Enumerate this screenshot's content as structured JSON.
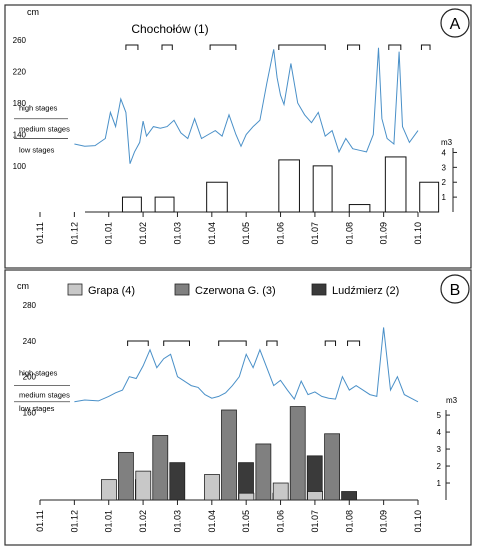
{
  "chart_data": [
    {
      "panel": "A",
      "type": "line+bar",
      "title": "Chochołów (1)",
      "y_unit": "cm",
      "y2_unit": "m3",
      "yticks": [
        100,
        140,
        180,
        220,
        260
      ],
      "ylim": [
        95,
        270
      ],
      "y2ticks": [
        1,
        2,
        3,
        4
      ],
      "y2lim": [
        0,
        4.3
      ],
      "xticks": [
        "01.11",
        "01.12",
        "01.01",
        "01.02",
        "01.03",
        "01.04",
        "01.05",
        "01.06",
        "01.07",
        "01.08",
        "01.09",
        "01.10"
      ],
      "stage_labels": [
        "high stages",
        "medium stages",
        "low stages"
      ],
      "stage_bounds_cm": [
        160,
        135
      ],
      "water_level": {
        "months": [
          2.0,
          2.3,
          2.6,
          2.9,
          3.05,
          3.2,
          3.35,
          3.5,
          3.62,
          3.75,
          3.9,
          4.0,
          4.1,
          4.3,
          4.5,
          4.7,
          4.9,
          5.1,
          5.3,
          5.5,
          5.7,
          5.9,
          6.1,
          6.3,
          6.5,
          6.7,
          6.85,
          7.0,
          7.2,
          7.4,
          7.6,
          7.8,
          7.9,
          8.0,
          8.1,
          8.3,
          8.5,
          8.7,
          8.9,
          9.1,
          9.3,
          9.5,
          9.7,
          9.9,
          10.1,
          10.3,
          10.5,
          10.7,
          10.85,
          10.95,
          11.1,
          11.3,
          11.45,
          11.55,
          11.75,
          12.0
        ],
        "cm": [
          128,
          125,
          126,
          135,
          168,
          150,
          185,
          168,
          103,
          118,
          130,
          157,
          138,
          150,
          148,
          150,
          158,
          142,
          135,
          160,
          135,
          140,
          145,
          138,
          165,
          140,
          125,
          140,
          150,
          158,
          205,
          248,
          212,
          190,
          178,
          230,
          180,
          165,
          155,
          168,
          138,
          145,
          118,
          135,
          122,
          120,
          118,
          140,
          250,
          160,
          135,
          128,
          245,
          150,
          130,
          145
        ]
      },
      "ice_bars": [
        {
          "start": 3.4,
          "end": 3.95,
          "value": 1
        },
        {
          "start": 4.35,
          "end": 4.9,
          "value": 1
        },
        {
          "start": 5.85,
          "end": 6.45,
          "value": 2
        },
        {
          "start": 7.95,
          "end": 8.55,
          "value": 3.5
        },
        {
          "start": 8.95,
          "end": 9.5,
          "value": 3.1
        },
        {
          "start": 10.0,
          "end": 10.6,
          "value": 0.5
        },
        {
          "start": 11.05,
          "end": 11.65,
          "value": 3.7
        },
        {
          "start": 12.05,
          "end": 12.6,
          "value": 2.0
        }
      ],
      "brackets": [
        [
          3.5,
          3.85
        ],
        [
          4.55,
          4.85
        ],
        [
          5.95,
          6.7
        ],
        [
          7.95,
          9.3
        ],
        [
          9.95,
          10.3
        ],
        [
          11.15,
          11.5
        ],
        [
          12.1,
          12.35
        ]
      ]
    },
    {
      "panel": "B",
      "type": "line+bar",
      "title": "",
      "y_unit": "cm",
      "y2_unit": "m3",
      "yticks": [
        160,
        200,
        240,
        280
      ],
      "ylim": [
        155,
        290
      ],
      "y2ticks": [
        1,
        2,
        3,
        4,
        5
      ],
      "y2lim": [
        0,
        5.3
      ],
      "xticks": [
        "01.11",
        "01.12",
        "01.01",
        "01.02",
        "01.03",
        "01.04",
        "01.05",
        "01.06",
        "01.07",
        "01.08",
        "01.09",
        "01.10"
      ],
      "stage_labels": [
        "high stages",
        "medium stages",
        "low stages"
      ],
      "stage_bounds_cm": [
        190,
        172
      ],
      "legend": [
        "Grapa (4)",
        "Czerwona G. (3)",
        "Ludźmierz (2)"
      ],
      "series_colors": [
        "#c8c8c8",
        "#808080",
        "#3a3a3a"
      ],
      "water_level": {
        "months": [
          2.0,
          2.3,
          2.7,
          3.0,
          3.2,
          3.4,
          3.6,
          3.8,
          4.0,
          4.2,
          4.4,
          4.6,
          4.8,
          5.0,
          5.2,
          5.4,
          5.6,
          5.8,
          6.0,
          6.2,
          6.4,
          6.6,
          6.8,
          7.0,
          7.2,
          7.4,
          7.6,
          7.8,
          8.0,
          8.2,
          8.4,
          8.6,
          8.8,
          9.0,
          9.2,
          9.4,
          9.6,
          9.8,
          10.0,
          10.2,
          10.4,
          10.6,
          10.8,
          11.0,
          11.2,
          11.4,
          11.6,
          11.8,
          12.0
        ],
        "cm": [
          172,
          174,
          173,
          178,
          182,
          185,
          200,
          198,
          212,
          230,
          210,
          220,
          225,
          200,
          195,
          190,
          188,
          180,
          176,
          178,
          182,
          190,
          200,
          225,
          210,
          230,
          210,
          190,
          196,
          185,
          175,
          195,
          180,
          183,
          178,
          176,
          175,
          200,
          185,
          190,
          185,
          180,
          178,
          255,
          185,
          200,
          180,
          176,
          172
        ]
      },
      "clusters": [
        {
          "month": 3.5,
          "values": [
            1.2,
            2.8,
            1.2
          ]
        },
        {
          "month": 4.5,
          "values": [
            1.7,
            3.8,
            2.2
          ]
        },
        {
          "month": 6.5,
          "values": [
            1.5,
            5.3,
            2.2
          ]
        },
        {
          "month": 7.5,
          "values": [
            0.4,
            3.3,
            0.4
          ]
        },
        {
          "month": 8.5,
          "values": [
            1.0,
            5.5,
            2.6
          ]
        },
        {
          "month": 9.5,
          "values": [
            0.5,
            3.9,
            0.5
          ]
        }
      ],
      "brackets": [
        [
          3.55,
          4.15
        ],
        [
          4.6,
          5.35
        ],
        [
          6.2,
          7.0
        ],
        [
          7.6,
          7.9
        ],
        [
          9.3,
          9.6
        ],
        [
          9.95,
          10.3
        ]
      ]
    }
  ],
  "panels": [
    "A",
    "B"
  ]
}
